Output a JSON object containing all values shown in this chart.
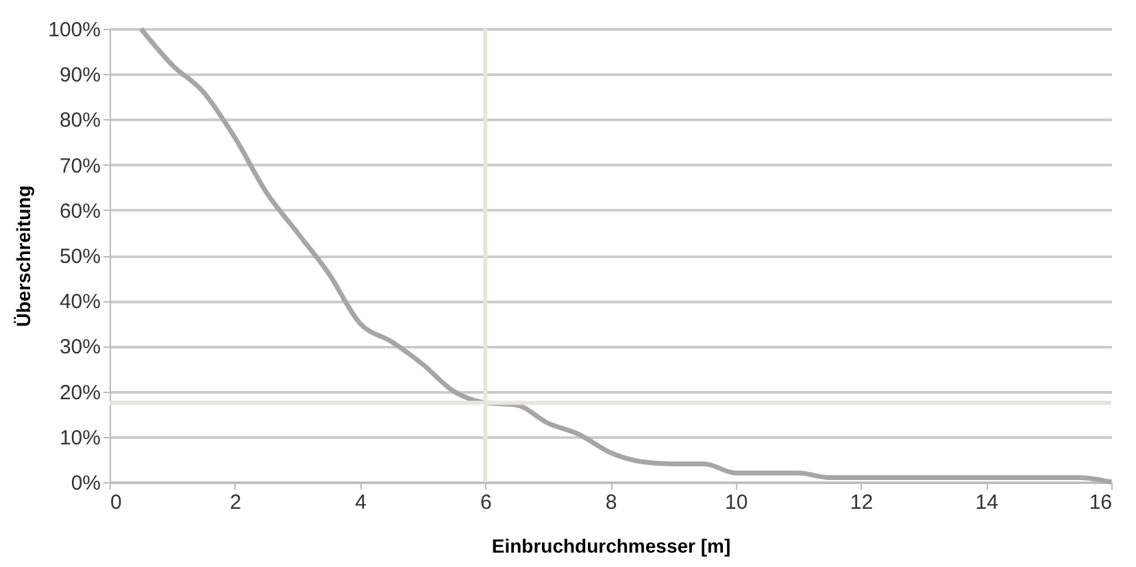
{
  "chart_data": {
    "type": "line",
    "xlabel": "Einbruchdurchmesser  [m]",
    "ylabel": "Überschreitung",
    "x": [
      0.5,
      1,
      1.5,
      2,
      2.5,
      3,
      3.5,
      4,
      4.5,
      5,
      5.5,
      6,
      6.5,
      7,
      7.5,
      8,
      8.5,
      9,
      9.5,
      10,
      10.5,
      11,
      11.5,
      12,
      13,
      14,
      15,
      15.5,
      16
    ],
    "series": [
      {
        "color": "#a6a6a6",
        "values": [
          100,
          92,
          86,
          76,
          64,
          55,
          46,
          35,
          31,
          26,
          20,
          17.5,
          17,
          13,
          10.5,
          6.5,
          4.5,
          4,
          4,
          2,
          2,
          2,
          1,
          1,
          1,
          1,
          1,
          1,
          0
        ]
      }
    ],
    "xlim": [
      0,
      16
    ],
    "xticks": [
      0,
      2,
      4,
      6,
      8,
      10,
      12,
      14,
      16
    ],
    "ylim": [
      0,
      100
    ],
    "yticks": [
      {
        "value": 0,
        "label": "0%"
      },
      {
        "value": 10,
        "label": "10%"
      },
      {
        "value": 20,
        "label": "20%"
      },
      {
        "value": 30,
        "label": "30%"
      },
      {
        "value": 40,
        "label": "40%"
      },
      {
        "value": 50,
        "label": "50%"
      },
      {
        "value": 60,
        "label": "60%"
      },
      {
        "value": 70,
        "label": "70%"
      },
      {
        "value": 80,
        "label": "80%"
      },
      {
        "value": 90,
        "label": "90%"
      },
      {
        "value": 100,
        "label": "100%"
      }
    ],
    "ref_lines": [
      {
        "axis": "x",
        "value": 6,
        "color": "#e8e6dc"
      },
      {
        "axis": "y",
        "value": 17.5,
        "color": "#e8e6dc"
      }
    ],
    "grid": "y",
    "marker": "none",
    "line_style": "solid"
  }
}
